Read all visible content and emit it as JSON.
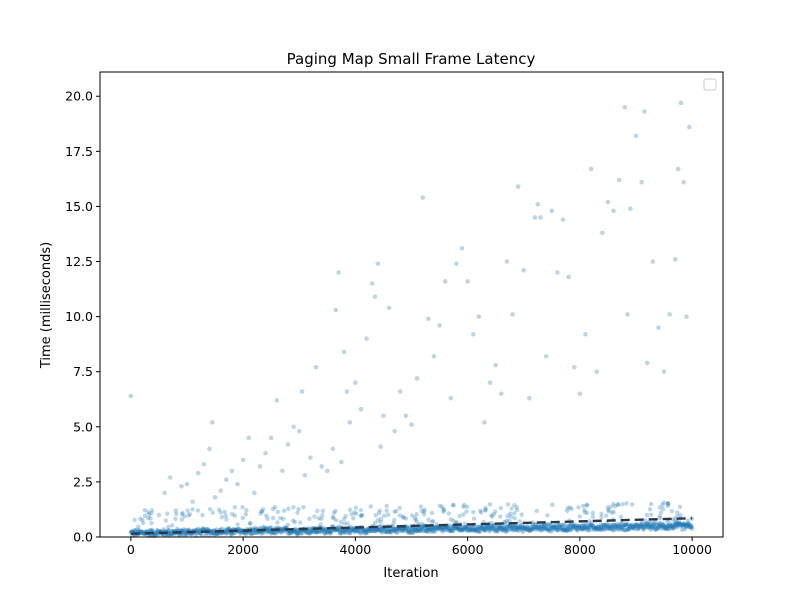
{
  "chart_data": {
    "type": "scatter",
    "title": "Paging Map Small Frame Latency",
    "xlabel": "Iteration",
    "ylabel": "Time (milliseconds)",
    "xlim": [
      -550,
      10550
    ],
    "ylim": [
      0,
      21.1
    ],
    "xticks": [
      "0",
      "2000",
      "4000",
      "6000",
      "8000",
      "10000"
    ],
    "xtick_values": [
      0,
      2000,
      4000,
      6000,
      8000,
      10000
    ],
    "yticks": [
      "0.0",
      "2.5",
      "5.0",
      "7.5",
      "10.0",
      "12.5",
      "15.0",
      "17.5",
      "20.0"
    ],
    "ytick_values": [
      0,
      2.5,
      5,
      7.5,
      10,
      12.5,
      15,
      17.5,
      20
    ],
    "grid": false,
    "legend": {
      "placement": "top-right",
      "entries": []
    },
    "colors": {
      "points": "#1f77b4",
      "trend": "#2b3a4a"
    },
    "series": [
      {
        "kind": "dense-band",
        "description_points": [
          [
            0,
            0.18
          ],
          [
            2000,
            0.26
          ],
          [
            4000,
            0.32
          ],
          [
            6000,
            0.38
          ],
          [
            8000,
            0.44
          ],
          [
            10000,
            0.5
          ]
        ],
        "spread": 0.12
      },
      {
        "kind": "scatter",
        "points": [
          [
            0,
            6.4
          ],
          [
            350,
            0.85
          ],
          [
            500,
            1.0
          ],
          [
            600,
            2.0
          ],
          [
            700,
            2.7
          ],
          [
            800,
            1.2
          ],
          [
            900,
            2.3
          ],
          [
            1000,
            2.4
          ],
          [
            1100,
            1.6
          ],
          [
            1200,
            2.9
          ],
          [
            1300,
            3.3
          ],
          [
            1400,
            4.0
          ],
          [
            1450,
            5.2
          ],
          [
            1500,
            1.8
          ],
          [
            1600,
            2.1
          ],
          [
            1700,
            2.6
          ],
          [
            1800,
            3.0
          ],
          [
            1900,
            2.4
          ],
          [
            2000,
            3.5
          ],
          [
            2100,
            4.5
          ],
          [
            2200,
            2.0
          ],
          [
            2300,
            3.2
          ],
          [
            2400,
            3.8
          ],
          [
            2500,
            4.5
          ],
          [
            2600,
            6.2
          ],
          [
            2700,
            3.0
          ],
          [
            2800,
            4.2
          ],
          [
            2900,
            5.0
          ],
          [
            3000,
            4.8
          ],
          [
            3050,
            6.6
          ],
          [
            3100,
            2.8
          ],
          [
            3200,
            3.6
          ],
          [
            3300,
            7.7
          ],
          [
            3400,
            3.2
          ],
          [
            3500,
            3.0
          ],
          [
            3600,
            4.0
          ],
          [
            3650,
            10.3
          ],
          [
            3700,
            12.0
          ],
          [
            3750,
            3.4
          ],
          [
            3800,
            8.4
          ],
          [
            3850,
            6.6
          ],
          [
            3900,
            5.2
          ],
          [
            4000,
            7.0
          ],
          [
            4100,
            5.8
          ],
          [
            4200,
            9.0
          ],
          [
            4300,
            11.5
          ],
          [
            4350,
            10.9
          ],
          [
            4400,
            12.4
          ],
          [
            4450,
            4.1
          ],
          [
            4500,
            5.5
          ],
          [
            4600,
            10.4
          ],
          [
            4700,
            4.8
          ],
          [
            4800,
            6.6
          ],
          [
            4900,
            5.5
          ],
          [
            5000,
            5.1
          ],
          [
            5100,
            7.2
          ],
          [
            5200,
            15.4
          ],
          [
            5300,
            9.9
          ],
          [
            5400,
            8.2
          ],
          [
            5500,
            9.6
          ],
          [
            5600,
            11.6
          ],
          [
            5700,
            6.3
          ],
          [
            5800,
            12.4
          ],
          [
            5900,
            13.1
          ],
          [
            6000,
            11.6
          ],
          [
            6100,
            9.2
          ],
          [
            6200,
            10.0
          ],
          [
            6300,
            5.2
          ],
          [
            6400,
            7.0
          ],
          [
            6500,
            7.8
          ],
          [
            6600,
            6.5
          ],
          [
            6700,
            12.5
          ],
          [
            6800,
            10.1
          ],
          [
            6900,
            15.9
          ],
          [
            7000,
            12.1
          ],
          [
            7100,
            6.3
          ],
          [
            7200,
            14.5
          ],
          [
            7250,
            15.1
          ],
          [
            7300,
            14.5
          ],
          [
            7400,
            8.2
          ],
          [
            7500,
            14.8
          ],
          [
            7600,
            12.0
          ],
          [
            7700,
            14.4
          ],
          [
            7800,
            11.8
          ],
          [
            7900,
            7.7
          ],
          [
            8000,
            6.5
          ],
          [
            8100,
            9.2
          ],
          [
            8200,
            16.7
          ],
          [
            8300,
            7.5
          ],
          [
            8400,
            13.8
          ],
          [
            8500,
            15.2
          ],
          [
            8600,
            14.8
          ],
          [
            8700,
            16.2
          ],
          [
            8800,
            19.5
          ],
          [
            8850,
            10.1
          ],
          [
            8900,
            14.9
          ],
          [
            9000,
            18.2
          ],
          [
            9100,
            16.1
          ],
          [
            9150,
            19.3
          ],
          [
            9200,
            7.9
          ],
          [
            9300,
            12.5
          ],
          [
            9400,
            9.5
          ],
          [
            9500,
            7.5
          ],
          [
            9600,
            10.1
          ],
          [
            9700,
            12.6
          ],
          [
            9750,
            16.7
          ],
          [
            9800,
            19.7
          ],
          [
            9850,
            16.1
          ],
          [
            9900,
            10.0
          ],
          [
            9950,
            18.6
          ]
        ]
      }
    ],
    "trend_line": {
      "style": "dashed",
      "x": [
        0,
        10000
      ],
      "y": [
        0.15,
        0.85
      ]
    }
  }
}
